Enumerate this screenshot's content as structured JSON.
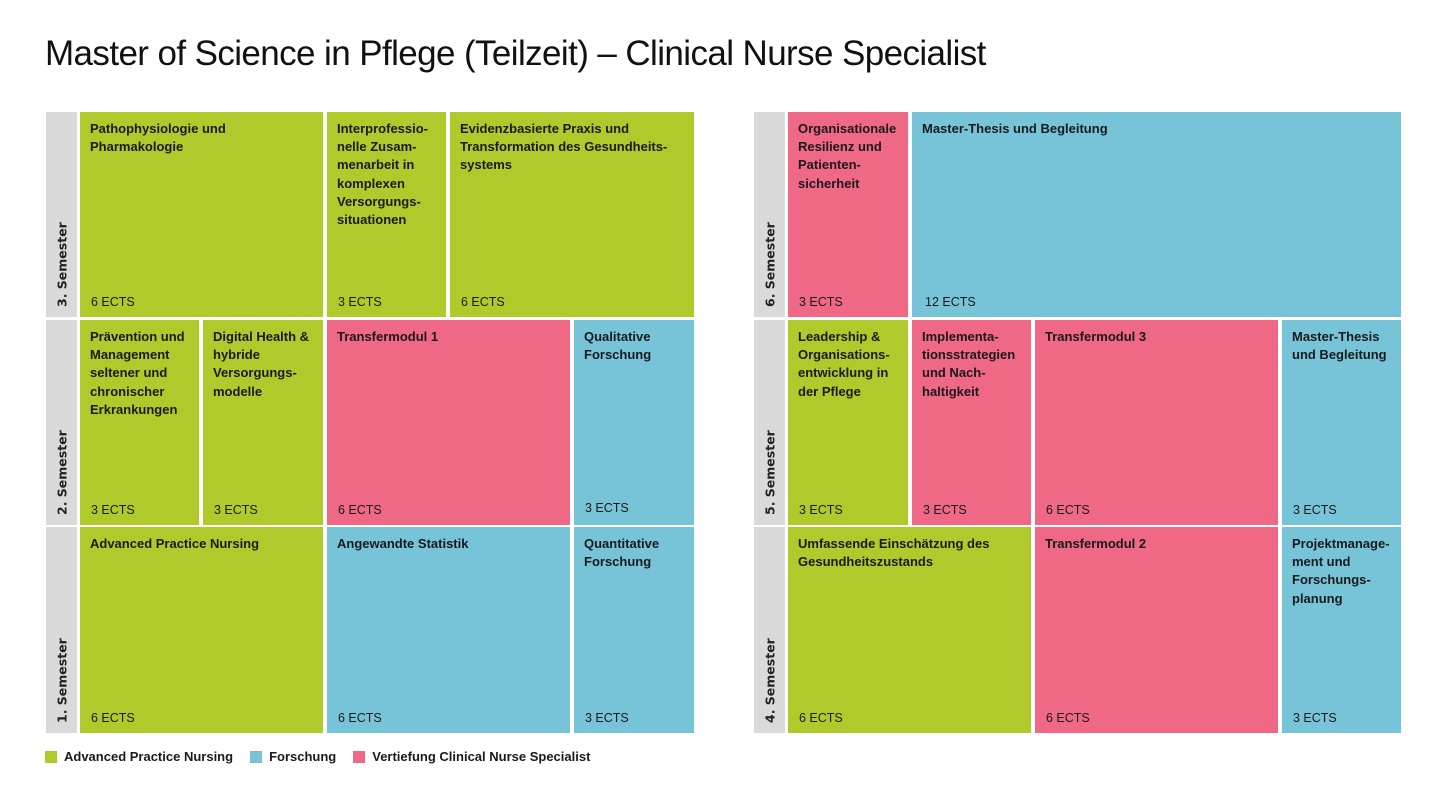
{
  "title": "Master of Science in Pflege (Teilzeit) – Clinical Nurse Specialist",
  "colors": {
    "apn": "#afca2a",
    "forschung": "#77c4d9",
    "vertiefung": "#ef6886",
    "label_bg": "#dadada"
  },
  "left_grid": {
    "rows": [
      {
        "semester": "3. Semester",
        "modules": [
          {
            "name": "Pathophysiologie und\nPharmakologie",
            "ects": "6 ECTS",
            "category": "apn"
          },
          {
            "name": "Interprofessio-\nnelle Zusam-\nmenarbeit in\nkomplexen\nVersorgungs-\nsituationen",
            "ects": "3 ECTS",
            "category": "apn"
          },
          {
            "name": "Evidenzbasierte Praxis und\nTransformation des Gesundheits-\nsystems",
            "ects": "6 ECTS",
            "category": "apn"
          }
        ]
      },
      {
        "semester": "2. Semester",
        "modules": [
          {
            "name": "Prävention und\nManagement\nseltener und\nchronischer\nErkrankungen",
            "ects": "3 ECTS",
            "category": "apn"
          },
          {
            "name": "Digital Health &\nhybride\nVersorgungs-\nmodelle",
            "ects": "3 ECTS",
            "category": "apn"
          },
          {
            "name": "Transfermodul 1",
            "ects": "6 ECTS",
            "category": "vertiefung"
          },
          {
            "name": "Qualitative\nForschung",
            "ects": "3 ECTS",
            "category": "forschung"
          }
        ]
      },
      {
        "semester": "1. Semester",
        "modules": [
          {
            "name": "Advanced Practice Nursing",
            "ects": "6 ECTS",
            "category": "apn"
          },
          {
            "name": "Angewandte Statistik",
            "ects": "6 ECTS",
            "category": "forschung"
          },
          {
            "name": "Quantitative\nForschung",
            "ects": "3 ECTS",
            "category": "forschung"
          }
        ]
      }
    ]
  },
  "right_grid": {
    "rows": [
      {
        "semester": "6. Semester",
        "modules": [
          {
            "name": "Organisationale\nResilienz und\nPatienten-\nsicherheit",
            "ects": "3 ECTS",
            "category": "vertiefung"
          },
          {
            "name": "Master-Thesis und Begleitung",
            "ects": "12 ECTS",
            "category": "forschung"
          }
        ]
      },
      {
        "semester": "5. Semester",
        "modules": [
          {
            "name": "Leadership &\nOrganisations-\nentwicklung in\nder Pflege",
            "ects": "3 ECTS",
            "category": "apn"
          },
          {
            "name": "Implementa-\ntionsstrategien\nund Nach-\nhaltigkeit",
            "ects": "3 ECTS",
            "category": "vertiefung"
          },
          {
            "name": "Transfermodul 3",
            "ects": "6 ECTS",
            "category": "vertiefung"
          },
          {
            "name": "Master-Thesis\nund Begleitung",
            "ects": "3 ECTS",
            "category": "forschung"
          }
        ]
      },
      {
        "semester": "4. Semester",
        "modules": [
          {
            "name": "Umfassende Einschätzung des\nGesundheitszustands",
            "ects": "6 ECTS",
            "category": "apn"
          },
          {
            "name": "Transfermodul 2",
            "ects": "6 ECTS",
            "category": "vertiefung"
          },
          {
            "name": "Projektmanage-\nment und\nForschungs-\nplanung",
            "ects": "3 ECTS",
            "category": "forschung"
          }
        ]
      }
    ]
  },
  "legend": [
    {
      "label": "Advanced Practice Nursing",
      "category": "apn"
    },
    {
      "label": "Forschung",
      "category": "forschung"
    },
    {
      "label": "Vertiefung Clinical Nurse Specialist",
      "category": "vertiefung"
    }
  ]
}
